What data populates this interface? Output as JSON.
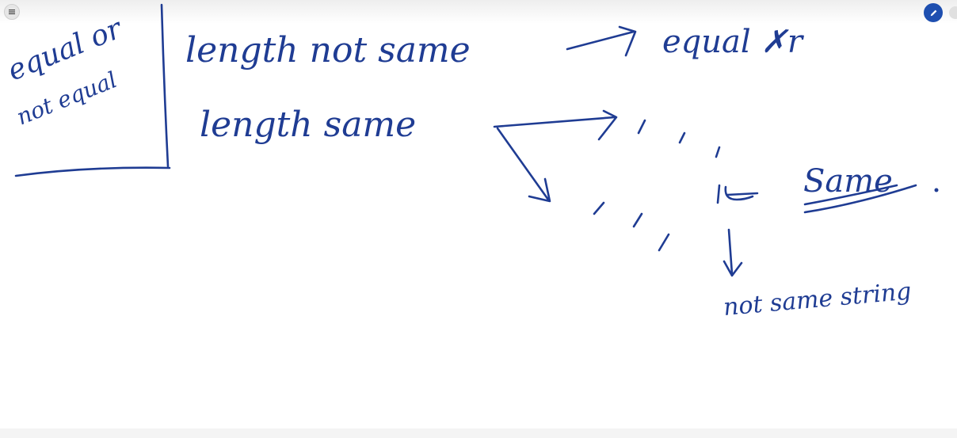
{
  "toolbar": {
    "menu_icon": "hamburger-menu-icon",
    "pen_icon": "pencil-icon",
    "pen_color": "#1e4fb0"
  },
  "ink_color": "#1f3c93",
  "notes": {
    "box_line1": "equal or",
    "box_line2": "not equal",
    "line1": "length not same",
    "line1_result": "equal ✗r",
    "line2": "length same",
    "same": "Same",
    "not_same": "not same string"
  }
}
